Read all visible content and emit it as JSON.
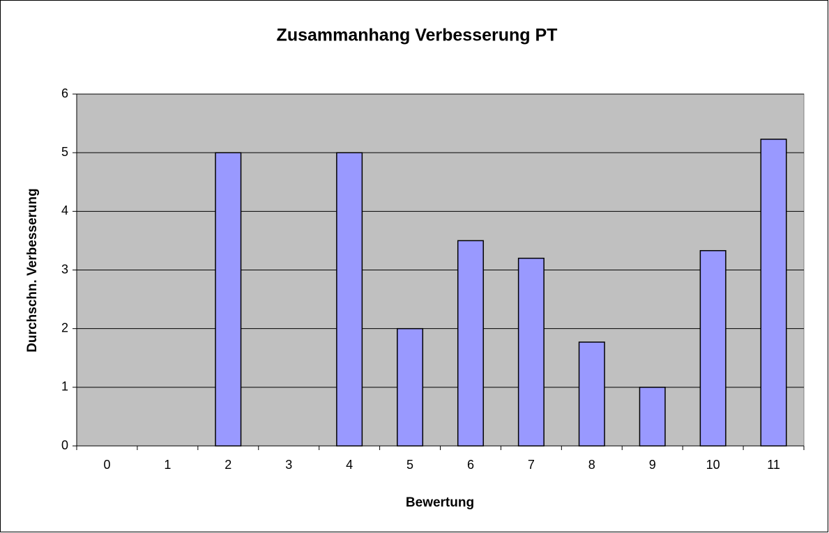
{
  "chart_data": {
    "type": "bar",
    "title": "Zusammanhang Verbesserung PT",
    "x_label": "Bewertung",
    "y_label": "Durchschn. Verbesserung",
    "categories": [
      "0",
      "1",
      "2",
      "3",
      "4",
      "5",
      "6",
      "7",
      "8",
      "9",
      "10",
      "11"
    ],
    "values": [
      0,
      0,
      5,
      0,
      5,
      2,
      3.5,
      3.2,
      1.77,
      1,
      3.33,
      5.23
    ],
    "color": "#9999ff",
    "ylim": [
      0,
      6
    ],
    "yticks": [
      0,
      1,
      2,
      3,
      4,
      5,
      6
    ],
    "grid": true
  }
}
